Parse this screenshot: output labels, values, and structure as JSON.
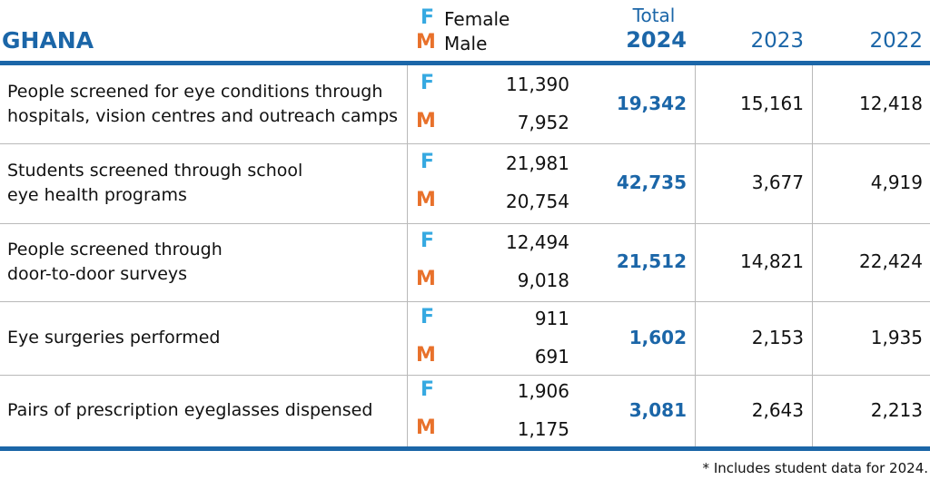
{
  "header": {
    "title": "GHANA",
    "legend": [
      {
        "code": "F",
        "label": "Female"
      },
      {
        "code": "M",
        "label": "Male"
      }
    ],
    "total_label": "Total",
    "columns": [
      "2024",
      "2023",
      "2022"
    ]
  },
  "rows": [
    {
      "label": [
        "People screened for eye conditions through",
        "hospitals, vision centres and outreach camps"
      ],
      "female": "11,390",
      "male": "7,952",
      "values": [
        "19,342",
        "15,161",
        "12,418"
      ]
    },
    {
      "label": [
        "Students screened through school",
        "eye health programs"
      ],
      "female": "21,981",
      "male": "20,754",
      "values": [
        "42,735",
        "3,677",
        "4,919"
      ]
    },
    {
      "label": [
        "People screened through",
        "door-to-door surveys"
      ],
      "female": "12,494",
      "male": "9,018",
      "values": [
        "21,512",
        "14,821",
        "22,424"
      ]
    },
    {
      "label": [
        "Eye surgeries performed"
      ],
      "female": "911",
      "male": "691",
      "values": [
        "1,602",
        "2,153",
        "1,935"
      ]
    },
    {
      "label": [
        "Pairs of prescription eyeglasses dispensed"
      ],
      "female": "1,906",
      "male": "1,175",
      "values": [
        "3,081",
        "2,643",
        "2,213"
      ]
    }
  ],
  "footnote": "* Includes student data for 2024."
}
